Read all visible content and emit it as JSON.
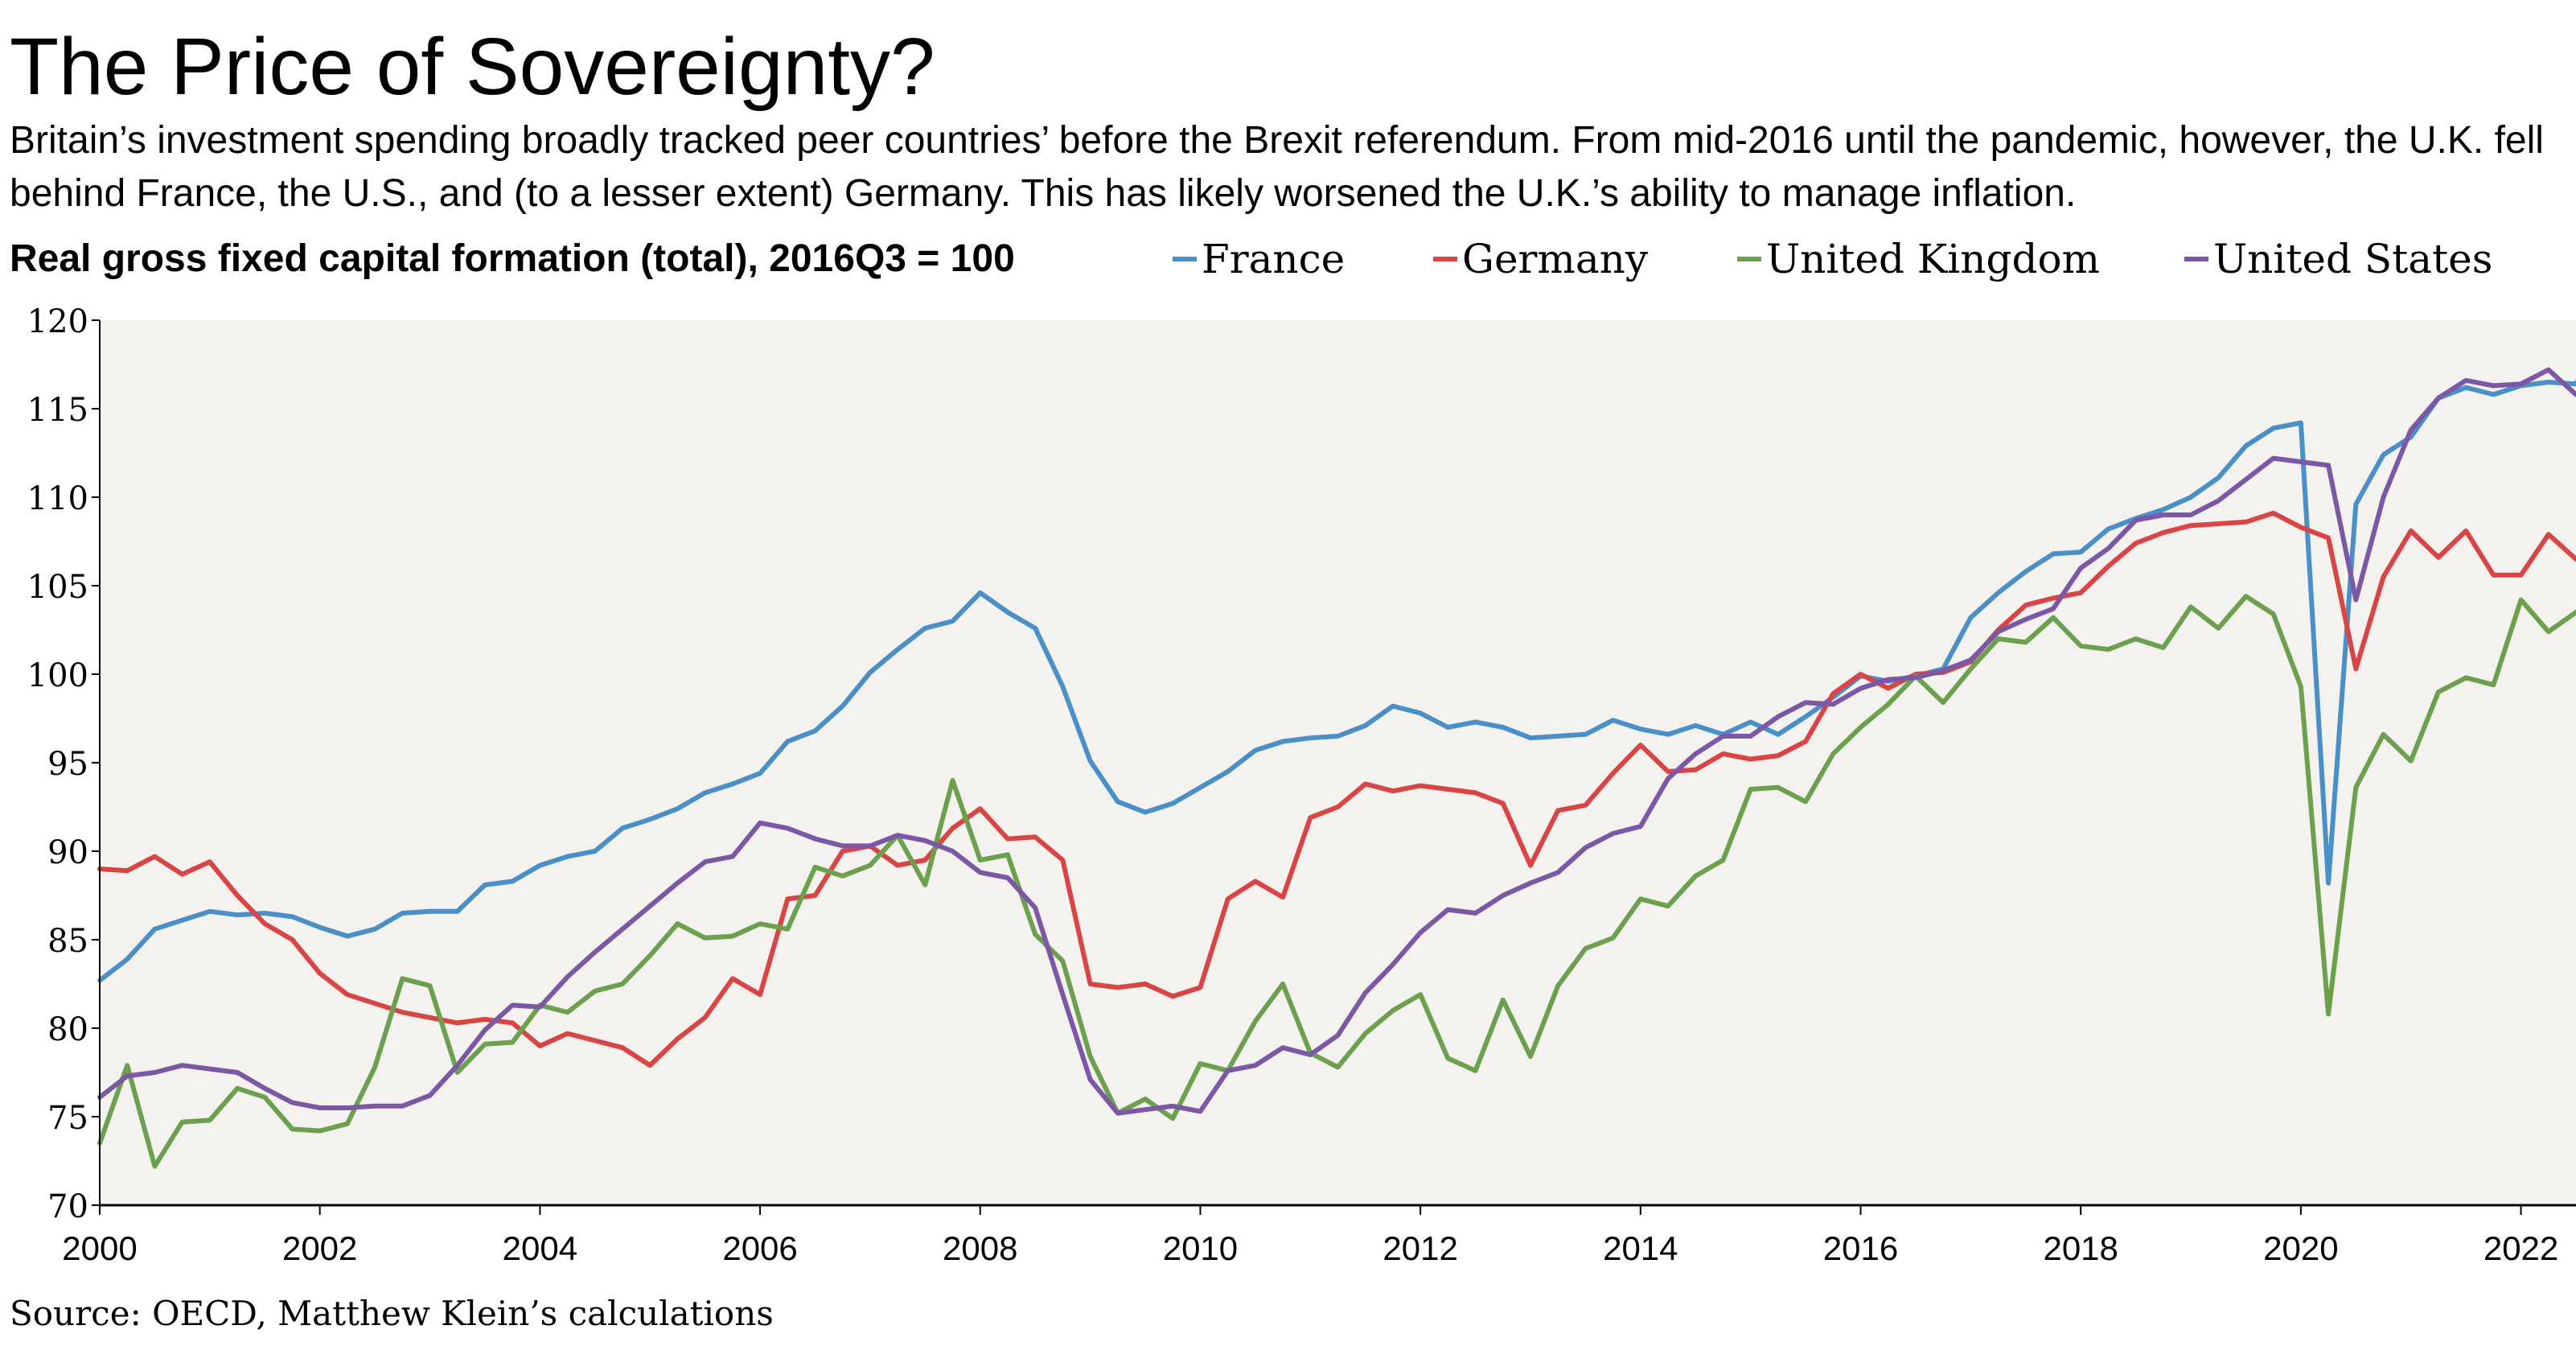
{
  "title": "The Price of Sovereignty?",
  "subtitle": "Britain’s investment spending broadly tracked peer countries’ before the Brexit referendum. From mid-2016 until the pandemic, however, the U.K. fell behind France, the U.S., and (to a lesser extent) Germany. This has likely worsened the U.K.’s ability to manage inflation.",
  "source": "Source: OECD, Matthew Klein’s calculations",
  "chart_data": {
    "type": "line",
    "title": "Real gross fixed capital formation (total), 2016Q3 = 100",
    "xlabel": "",
    "ylabel": "",
    "xlim": [
      2000,
      2022.5
    ],
    "ylim": [
      70,
      120
    ],
    "x_ticks": [
      "2000",
      "2002",
      "2004",
      "2006",
      "2008",
      "2010",
      "2012",
      "2014",
      "2016",
      "2018",
      "2020",
      "2022"
    ],
    "y_ticks": [
      "70",
      "75",
      "80",
      "85",
      "90",
      "95",
      "100",
      "105",
      "110",
      "115",
      "120"
    ],
    "grid": false,
    "legend_position": "top",
    "x_start": "2000Q1",
    "x_step": "quarterly",
    "plot_background": "#f4f2ef",
    "series": [
      {
        "name": "France",
        "color": "#4a8fc8",
        "values": [
          82.7,
          83.9,
          85.6,
          86.1,
          86.6,
          86.4,
          86.5,
          86.3,
          85.7,
          85.2,
          85.6,
          86.5,
          86.6,
          86.6,
          88.1,
          88.3,
          89.2,
          89.7,
          90.0,
          91.3,
          91.8,
          92.4,
          93.3,
          93.8,
          94.4,
          96.2,
          96.8,
          98.2,
          100.1,
          101.4,
          102.6,
          103.0,
          104.6,
          103.5,
          102.6,
          99.3,
          95.1,
          92.8,
          92.2,
          92.7,
          93.6,
          94.5,
          95.7,
          96.2,
          96.4,
          96.5,
          97.1,
          98.2,
          97.8,
          97.0,
          97.3,
          97.0,
          96.4,
          96.5,
          96.6,
          97.4,
          96.9,
          96.6,
          97.1,
          96.6,
          97.3,
          96.6,
          97.6,
          98.7,
          99.9,
          99.6,
          99.9,
          100.3,
          103.2,
          104.6,
          105.8,
          106.8,
          106.9,
          108.2,
          108.8,
          109.3,
          110.0,
          111.1,
          112.9,
          113.9,
          114.2,
          88.2,
          109.6,
          112.4,
          113.4,
          115.6,
          116.2,
          115.8,
          116.3,
          116.5,
          116.4,
          119.0
        ]
      },
      {
        "name": "Germany",
        "color": "#d94545",
        "values": [
          89.0,
          88.9,
          89.7,
          88.7,
          89.4,
          87.5,
          85.9,
          85.0,
          83.1,
          81.9,
          81.4,
          80.9,
          80.6,
          80.3,
          80.5,
          80.3,
          79.0,
          79.7,
          79.3,
          78.9,
          77.9,
          79.4,
          80.6,
          82.8,
          81.9,
          87.3,
          87.5,
          90.0,
          90.3,
          89.2,
          89.5,
          91.3,
          92.4,
          90.7,
          90.8,
          89.5,
          82.5,
          82.3,
          82.5,
          81.8,
          82.3,
          87.3,
          88.3,
          87.4,
          91.9,
          92.5,
          93.8,
          93.4,
          93.7,
          93.5,
          93.3,
          92.7,
          89.2,
          92.3,
          92.6,
          94.4,
          96.0,
          94.5,
          94.6,
          95.5,
          95.2,
          95.4,
          96.2,
          98.9,
          100.0,
          99.2,
          100.0,
          100.1,
          100.7,
          102.5,
          103.9,
          104.3,
          104.6,
          106.1,
          107.4,
          108.0,
          108.4,
          108.5,
          108.6,
          109.1,
          108.3,
          107.7,
          100.3,
          105.5,
          108.1,
          106.6,
          108.1,
          105.6,
          105.6,
          107.9,
          106.5,
          106.8
        ]
      },
      {
        "name": "United Kingdom",
        "color": "#6aa04e",
        "values": [
          73.5,
          77.9,
          72.2,
          74.7,
          74.8,
          76.6,
          76.1,
          74.3,
          74.2,
          74.6,
          77.8,
          82.8,
          82.4,
          77.5,
          79.1,
          79.2,
          81.3,
          80.9,
          82.1,
          82.5,
          84.1,
          85.9,
          85.1,
          85.2,
          85.9,
          85.6,
          89.1,
          88.6,
          89.2,
          90.9,
          88.1,
          94.0,
          89.5,
          89.8,
          85.3,
          83.8,
          78.4,
          75.2,
          76.0,
          74.9,
          78.0,
          77.6,
          80.4,
          82.5,
          78.6,
          77.8,
          79.7,
          81.0,
          81.9,
          78.3,
          77.6,
          81.6,
          78.4,
          82.4,
          84.5,
          85.1,
          87.3,
          86.9,
          88.6,
          89.5,
          93.5,
          93.6,
          92.8,
          95.5,
          97.0,
          98.3,
          99.9,
          98.4,
          100.3,
          102.0,
          101.8,
          103.2,
          101.6,
          101.4,
          102.0,
          101.5,
          103.8,
          102.6,
          104.4,
          103.4,
          99.3,
          80.8,
          93.6,
          96.6,
          95.1,
          99.0,
          99.8,
          99.4,
          104.2,
          102.4,
          103.5
        ]
      },
      {
        "name": "United States",
        "color": "#7b57a6",
        "values": [
          76.1,
          77.3,
          77.5,
          77.9,
          77.7,
          77.5,
          76.6,
          75.8,
          75.5,
          75.5,
          75.6,
          75.6,
          76.2,
          77.9,
          79.9,
          81.3,
          81.2,
          82.9,
          84.3,
          85.6,
          86.9,
          88.2,
          89.4,
          89.7,
          91.6,
          91.3,
          90.7,
          90.3,
          90.3,
          90.9,
          90.6,
          90.0,
          88.8,
          88.5,
          86.8,
          81.9,
          77.1,
          75.2,
          75.4,
          75.6,
          75.3,
          77.6,
          77.9,
          78.9,
          78.5,
          79.6,
          82.0,
          83.6,
          85.4,
          86.7,
          86.5,
          87.5,
          88.2,
          88.8,
          90.2,
          91.0,
          91.4,
          94.1,
          95.5,
          96.5,
          96.5,
          97.6,
          98.4,
          98.3,
          99.2,
          99.7,
          99.8,
          100.2,
          100.8,
          102.4,
          103.1,
          103.7,
          106.0,
          107.1,
          108.7,
          109.0,
          109.0,
          109.8,
          111.0,
          112.2,
          112.0,
          111.8,
          104.2,
          110.0,
          113.8,
          115.6,
          116.6,
          116.3,
          116.4,
          117.2,
          115.8,
          115.3
        ]
      }
    ]
  }
}
